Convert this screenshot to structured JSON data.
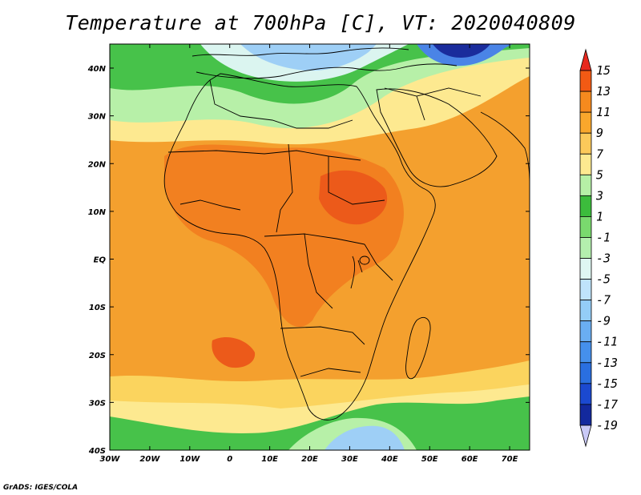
{
  "title": "Temperature at 700hPa [C], VT: 2020040809",
  "credit": "GrADS: IGES/COLA",
  "lon_labels": [
    "30W",
    "20W",
    "10W",
    "0",
    "10E",
    "20E",
    "30E",
    "40E",
    "50E",
    "60E",
    "70E"
  ],
  "lat_labels": [
    "40N",
    "30N",
    "20N",
    "10N",
    "EQ",
    "10S",
    "20S",
    "30S",
    "40S"
  ],
  "colorbar": {
    "labels": [
      "15",
      "13",
      "11",
      "9",
      "7",
      "5",
      "3",
      "1",
      "-1",
      "-3",
      "-5",
      "-7",
      "-9",
      "-11",
      "-13",
      "-15",
      "-17",
      "-19"
    ],
    "colors": [
      "#e8281e",
      "#f25a14",
      "#f68a1e",
      "#f9a72c",
      "#fcc95a",
      "#fde990",
      "#b6f0a6",
      "#3cbc3c",
      "#7ad96e",
      "#b4efae",
      "#dff7f2",
      "#bfe3fb",
      "#94cdf7",
      "#6aaef2",
      "#4590ec",
      "#2a6fe0",
      "#1b49d0",
      "#13299d",
      "#c9c9f6"
    ]
  },
  "colors": {
    "sea_orange": "#f4a02e",
    "land_orange": "#f28020",
    "hot": "#ec5a1a",
    "yellow": "#fbd45e",
    "pale_yellow": "#fde990",
    "light_green": "#b7f0a8",
    "green": "#47c24a",
    "cyan": "#dbf5f0",
    "light_blue": "#9ecff6",
    "blue": "#4a84e6",
    "dark_blue": "#1a2c9c"
  }
}
